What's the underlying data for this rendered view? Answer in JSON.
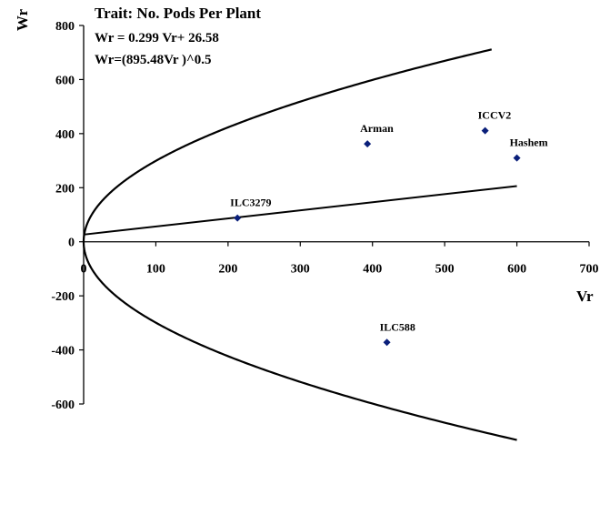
{
  "chart_data": {
    "type": "scatter",
    "title": "Trait: No. Pods Per Plant",
    "annotations": [
      "Wr = 0.299 Vr+ 26.58",
      "Wr=(895.48Vr )^0.5"
    ],
    "xlabel": "Vr",
    "ylabel": "Wr",
    "xlim": [
      0,
      700
    ],
    "ylim": [
      -600,
      800
    ],
    "x_ticks": [
      "0",
      "100",
      "200",
      "300",
      "400",
      "500",
      "600",
      "700"
    ],
    "y_ticks": [
      "800",
      "600",
      "400",
      "200",
      "0",
      "-200",
      "-400",
      "-600"
    ],
    "grid": false,
    "legend": "none",
    "points": [
      {
        "label": "ILC3279",
        "x": 213,
        "y": 88
      },
      {
        "label": "Arman",
        "x": 393,
        "y": 362
      },
      {
        "label": "ICCV2",
        "x": 556,
        "y": 411
      },
      {
        "label": "Hashem",
        "x": 600,
        "y": 310
      },
      {
        "label": "ILC588",
        "x": 420,
        "y": -372
      }
    ],
    "regression_line": {
      "slope": 0.299,
      "intercept": 26.58,
      "x_range": [
        0,
        600
      ]
    },
    "limiting_parabola": {
      "coefficient": 895.48,
      "x_range_upper": [
        0,
        565
      ],
      "x_range_lower": [
        0,
        600
      ]
    },
    "colors": {
      "point": "#0a1f7a",
      "line": "#000000"
    }
  }
}
